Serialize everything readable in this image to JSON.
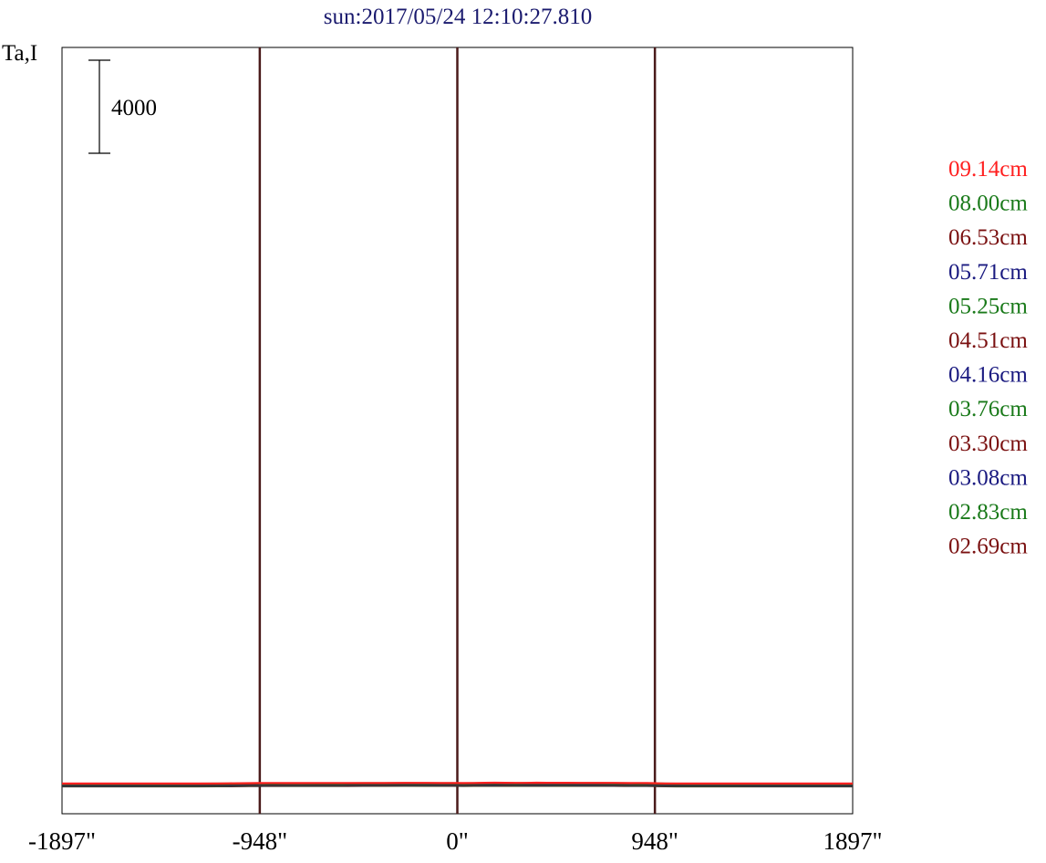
{
  "chart_data": {
    "type": "line",
    "title": "sun:2017/05/24 12:10:27.810",
    "ylabel": "Ta,I",
    "scale_label": "4000",
    "scale_bar_value": 4000,
    "xlim": [
      -1897,
      1897
    ],
    "x_ticks": [
      {
        "value": -1897,
        "label": "-1897\""
      },
      {
        "value": -948,
        "label": "-948\""
      },
      {
        "value": 0,
        "label": "0\""
      },
      {
        "value": 948,
        "label": "948\""
      },
      {
        "value": 1897,
        "label": "1897\""
      }
    ],
    "vertical_lines": [
      -948,
      0,
      948
    ],
    "grid": false,
    "stacked_offset": 8.76,
    "shape_x": [
      -1897,
      -1800,
      -1600,
      -1400,
      -1250,
      -1150,
      -1100,
      -1050,
      -1000,
      -960,
      -930,
      -900,
      -870,
      -820,
      -750,
      -650,
      -550,
      -450,
      -350,
      -250,
      -150,
      -80,
      -20,
      30,
      80,
      130,
      180,
      230,
      280,
      330,
      380,
      430,
      480,
      530,
      600,
      680,
      750,
      800,
      830,
      870,
      910,
      940,
      970,
      1000,
      1050,
      1100,
      1200,
      1300,
      1450,
      1600,
      1750,
      1897
    ],
    "series": [
      {
        "name": "09.14cm",
        "color": "#ff2020",
        "legend": true,
        "y": [
          0,
          0,
          0,
          0.14,
          0.75,
          2.2,
          5.1,
          9.6,
          14.1,
          17.6,
          19.6,
          20.9,
          21.2,
          20.4,
          20.2,
          20.5,
          21.3,
          22.2,
          23.7,
          26.6,
          25.1,
          24.0,
          22.0,
          20.1,
          23.9,
          29.9,
          35.5,
          29.6,
          24.9,
          28.2,
          32.6,
          30.9,
          29.7,
          28.9,
          28.0,
          26.9,
          25.0,
          23.4,
          20.2,
          23.6,
          19.9,
          13.0,
          6.4,
          2.8,
          1.0,
          0.4,
          0.28,
          0.14,
          0,
          0,
          0,
          0
        ]
      },
      {
        "name": "08.00cm",
        "color": "#1a7a1a",
        "legend": true,
        "y": [
          0,
          0,
          0,
          0.14,
          0.75,
          2.2,
          5.1,
          9.6,
          14.1,
          17.6,
          19.6,
          20.9,
          21.2,
          20.4,
          20.2,
          20.5,
          21.3,
          22.2,
          23.7,
          26.6,
          25.1,
          24.0,
          22.0,
          20.1,
          23.9,
          27.8,
          30.9,
          27.1,
          24.9,
          26.6,
          29.0,
          28.1,
          27.8,
          27.3,
          26.6,
          25.9,
          24.1,
          22.6,
          19.6,
          21.2,
          19.5,
          13.0,
          6.4,
          2.8,
          1.0,
          0.4,
          0.28,
          0.14,
          0,
          0,
          0,
          0
        ]
      },
      {
        "name": "06.53cm",
        "color": "#7a1010",
        "legend": true,
        "y": [
          0,
          0,
          0,
          0.14,
          0.75,
          2.2,
          5.1,
          9.6,
          14.1,
          17.6,
          19.6,
          20.9,
          21.2,
          20.4,
          20.2,
          20.5,
          21.3,
          22.2,
          23.7,
          26.6,
          25.1,
          24.0,
          22.0,
          20.1,
          23.9,
          27.0,
          29.3,
          26.1,
          24.9,
          26.0,
          27.7,
          27.1,
          27.2,
          26.8,
          26.1,
          25.5,
          23.8,
          22.3,
          19.4,
          20.3,
          19.3,
          13.0,
          6.4,
          2.8,
          1.0,
          0.4,
          0.28,
          0.14,
          0,
          0,
          0,
          0
        ]
      },
      {
        "name": "05.71cm",
        "color": "#1a1a80",
        "legend": true,
        "y": [
          0,
          0,
          0,
          0.14,
          0.75,
          2.2,
          5.1,
          9.6,
          14.1,
          17.6,
          19.6,
          20.9,
          21.2,
          20.4,
          20.2,
          20.5,
          21.3,
          22.2,
          23.7,
          26.6,
          25.1,
          24.0,
          22.0,
          20.1,
          23.9,
          26.4,
          28.3,
          25.5,
          24.9,
          25.6,
          26.9,
          26.5,
          26.8,
          26.5,
          25.8,
          25.3,
          23.5,
          22.1,
          19.3,
          19.8,
          19.2,
          13.0,
          6.4,
          2.8,
          1.0,
          0.4,
          0.28,
          0.14,
          0,
          0,
          0,
          0
        ]
      },
      {
        "name": "05.25cm",
        "color": "#1a7a1a",
        "legend": true,
        "y": [
          0,
          0,
          0,
          0.14,
          0.75,
          2.2,
          5.1,
          9.6,
          14.1,
          17.6,
          19.6,
          20.9,
          21.2,
          20.4,
          20.2,
          20.5,
          21.3,
          22.2,
          23.7,
          26.6,
          25.1,
          24.0,
          22.0,
          20.1,
          23.9,
          25.6,
          26.6,
          24.8,
          24.9,
          25.0,
          25.5,
          25.6,
          26.2,
          26.0,
          25.3,
          24.9,
          23.2,
          21.8,
          19.1,
          19.0,
          19.1,
          13.0,
          6.4,
          2.8,
          1.0,
          0.4,
          0.28,
          0.14,
          0,
          0,
          0,
          0
        ]
      },
      {
        "name": "04.51cm",
        "color": "#7a1010",
        "legend": true,
        "y": [
          0,
          0,
          0,
          0.14,
          0.75,
          2.2,
          5.1,
          9.6,
          14.1,
          17.6,
          19.6,
          20.9,
          21.2,
          20.4,
          20.2,
          20.5,
          21.3,
          22.2,
          23.7,
          26.6,
          25.1,
          24.0,
          22.0,
          20.1,
          23.9,
          25.0,
          25.8,
          24.5,
          24.9,
          24.7,
          24.9,
          25.2,
          25.9,
          25.8,
          25.1,
          24.7,
          23.1,
          21.7,
          19.0,
          18.6,
          19.0,
          13.0,
          6.4,
          2.8,
          1.0,
          0.4,
          0.28,
          0.14,
          0,
          0,
          0,
          0
        ]
      },
      {
        "name": "04.16cm",
        "color": "#1a1a80",
        "legend": true,
        "y": [
          0,
          0,
          0,
          0.14,
          0.75,
          2.2,
          5.1,
          9.6,
          14.1,
          17.6,
          19.6,
          20.9,
          21.2,
          20.4,
          20.2,
          20.5,
          21.3,
          22.2,
          23.7,
          26.6,
          25.1,
          24.0,
          22.0,
          20.1,
          23.9,
          24.6,
          25.2,
          24.2,
          24.9,
          24.5,
          24.4,
          24.9,
          25.7,
          25.6,
          24.9,
          24.6,
          23.0,
          21.6,
          18.9,
          18.4,
          18.9,
          13.0,
          6.4,
          2.8,
          1.0,
          0.4,
          0.28,
          0.14,
          0,
          0,
          0,
          0
        ]
      },
      {
        "name": "03.76cm",
        "color": "#1a7a1a",
        "legend": true,
        "y": [
          0,
          0,
          0,
          0.14,
          0.75,
          2.2,
          5.1,
          9.6,
          14.1,
          17.6,
          19.6,
          20.9,
          21.2,
          20.4,
          20.2,
          20.5,
          21.3,
          22.2,
          23.7,
          26.6,
          25.1,
          24.0,
          22.0,
          20.1,
          23.9,
          24.4,
          24.8,
          24.0,
          24.9,
          24.3,
          24.1,
          24.7,
          25.5,
          25.5,
          24.8,
          24.5,
          22.9,
          21.6,
          18.9,
          18.2,
          18.9,
          13.0,
          6.4,
          2.8,
          1.0,
          0.4,
          0.28,
          0.14,
          0,
          0,
          0,
          0
        ]
      },
      {
        "name": "03.30cm",
        "color": "#7a1010",
        "legend": true,
        "y": [
          0,
          0,
          0,
          0.14,
          0.75,
          2.2,
          5.1,
          9.6,
          14.1,
          17.6,
          19.6,
          20.9,
          21.2,
          20.4,
          20.2,
          20.5,
          21.3,
          22.2,
          23.7,
          26.6,
          25.1,
          24.0,
          22.0,
          20.1,
          23.9,
          24.2,
          24.5,
          23.9,
          24.9,
          24.3,
          24.0,
          24.6,
          25.5,
          25.4,
          24.7,
          24.5,
          22.9,
          21.6,
          18.8,
          18.2,
          18.8,
          13.0,
          6.4,
          2.8,
          1.0,
          0.4,
          0.28,
          0.14,
          0,
          0,
          0,
          0
        ]
      },
      {
        "name": "03.08cm",
        "color": "#1a1a80",
        "legend": true,
        "y": [
          0,
          0,
          0,
          0.14,
          0.75,
          2.2,
          5.1,
          9.6,
          14.1,
          17.6,
          19.6,
          20.9,
          21.2,
          20.4,
          20.2,
          20.5,
          21.3,
          22.2,
          23.7,
          26.6,
          25.1,
          24.0,
          22.0,
          20.1,
          23.9,
          24.2,
          24.4,
          23.9,
          24.9,
          24.2,
          23.9,
          24.6,
          25.4,
          25.4,
          24.7,
          24.5,
          22.9,
          21.5,
          18.8,
          18.2,
          18.8,
          13.0,
          6.4,
          2.8,
          1.0,
          0.4,
          0.28,
          0.14,
          0,
          0,
          0,
          0
        ]
      },
      {
        "name": "02.83cm",
        "color": "#1a7a1a",
        "legend": true,
        "y": [
          0,
          0,
          0,
          0.14,
          0.75,
          2.2,
          5.1,
          9.6,
          14.1,
          17.6,
          19.6,
          20.9,
          21.2,
          20.4,
          20.2,
          20.5,
          21.3,
          22.2,
          23.7,
          26.6,
          25.1,
          24.0,
          22.0,
          20.1,
          23.9,
          24.2,
          24.4,
          23.9,
          24.9,
          24.2,
          23.9,
          24.6,
          25.4,
          25.4,
          24.7,
          24.5,
          22.9,
          21.5,
          18.8,
          18.2,
          18.8,
          13.0,
          6.4,
          2.8,
          1.0,
          0.4,
          0.28,
          0.14,
          0,
          0,
          0,
          0
        ]
      },
      {
        "name": "02.69cm",
        "color": "#7a1010",
        "legend": true,
        "y": [
          0,
          0,
          0,
          0.14,
          0.75,
          2.2,
          5.1,
          9.6,
          14.1,
          17.6,
          19.6,
          20.9,
          21.2,
          20.4,
          20.2,
          20.5,
          21.3,
          22.2,
          23.7,
          26.6,
          25.1,
          24.0,
          22.0,
          20.1,
          23.9,
          24.2,
          24.4,
          23.9,
          24.9,
          24.2,
          23.9,
          24.6,
          25.4,
          25.4,
          24.7,
          24.5,
          22.9,
          21.5,
          18.8,
          18.2,
          18.8,
          13.0,
          6.4,
          2.8,
          1.0,
          0.4,
          0.28,
          0.14,
          0,
          0,
          0,
          0
        ]
      },
      {
        "name": "",
        "color": "#1a1a80",
        "legend": false,
        "y": [
          0,
          0,
          0,
          0.14,
          0.75,
          2.2,
          5.1,
          9.6,
          14.1,
          17.6,
          19.6,
          20.9,
          21.2,
          20.4,
          20.2,
          20.5,
          21.3,
          22.2,
          23.7,
          26.6,
          25.1,
          24.0,
          22.0,
          20.1,
          23.9,
          24.2,
          24.4,
          23.9,
          24.9,
          24.2,
          23.9,
          24.6,
          25.4,
          25.4,
          24.7,
          24.5,
          22.9,
          21.5,
          18.8,
          18.2,
          18.8,
          13.0,
          6.4,
          2.8,
          1.0,
          0.4,
          0.28,
          0.14,
          0,
          0,
          0,
          0
        ]
      },
      {
        "name": "",
        "color": "#1a7a1a",
        "legend": false,
        "y": [
          0,
          0,
          0,
          0.14,
          0.75,
          2.2,
          5.1,
          9.6,
          14.1,
          17.6,
          19.6,
          20.9,
          21.2,
          20.4,
          20.2,
          20.5,
          21.3,
          22.2,
          23.7,
          26.6,
          25.1,
          24.0,
          22.0,
          20.1,
          23.9,
          24.2,
          24.4,
          23.9,
          24.9,
          24.2,
          23.9,
          24.6,
          25.4,
          25.4,
          24.7,
          24.5,
          22.9,
          21.5,
          18.8,
          18.2,
          18.8,
          13.0,
          6.4,
          2.8,
          1.0,
          0.4,
          0.28,
          0.14,
          0,
          0,
          0,
          0
        ]
      },
      {
        "name": "",
        "color": "#7a1010",
        "legend": false,
        "y": [
          0,
          0,
          0,
          0.14,
          0.75,
          2.2,
          5.1,
          9.6,
          14.1,
          17.6,
          19.6,
          20.9,
          21.2,
          20.4,
          20.2,
          20.5,
          21.3,
          22.2,
          23.7,
          26.6,
          25.1,
          24.0,
          22.0,
          20.1,
          23.9,
          24.2,
          24.4,
          23.9,
          24.9,
          24.2,
          23.9,
          24.6,
          25.4,
          25.4,
          24.7,
          24.5,
          22.9,
          21.5,
          18.8,
          18.2,
          18.8,
          13.0,
          6.4,
          2.8,
          1.0,
          0.4,
          0.28,
          0.14,
          0,
          0,
          0,
          0
        ]
      }
    ]
  }
}
